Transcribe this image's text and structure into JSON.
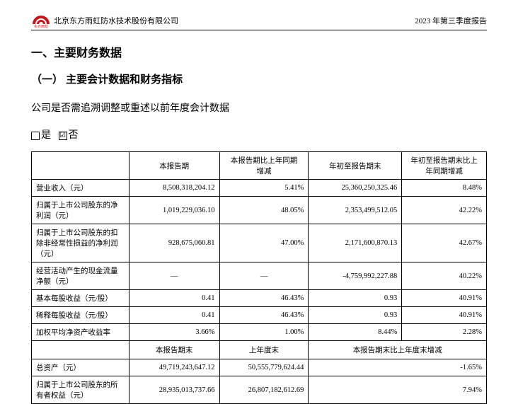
{
  "header": {
    "company_name": "北京东方雨虹防水技术股份有限公司",
    "report_label": "2023 年第三季度报告",
    "logo_color": "#c4161c",
    "logo_sub": "东方雨虹"
  },
  "headings": {
    "h1": "一、主要财务数据",
    "h2": "（一） 主要会计数据和财务指标",
    "para": "公司是否需追溯调整或重述以前年度会计数据",
    "opt_yes": "是",
    "opt_no": "否",
    "opt_symbol": ""
  },
  "table1": {
    "headers": {
      "blank": "",
      "c1": "本报告期",
      "c2": "本报告期比上年同期\n增减",
      "c3": "年初至报告期末",
      "c4": "年初至报告期末比上\n年同期增减"
    },
    "rows": [
      {
        "label": "营业收入（元）",
        "c1": "8,508,318,204.12",
        "c2": "5.41%",
        "c3": "25,360,250,325.46",
        "c4": "8.48%"
      },
      {
        "label": "归属于上市公司股东的净\n利润（元）",
        "c1": "1,019,229,036.10",
        "c2": "48.05%",
        "c3": "2,353,499,512.05",
        "c4": "42.22%"
      },
      {
        "label": "归属于上市公司股东的扣\n除非经常性损益的净利润\n（元）",
        "c1": "928,675,060.81",
        "c2": "47.00%",
        "c3": "2,171,600,870.13",
        "c4": "42.67%"
      },
      {
        "label": "经营活动产生的现金流量\n净额（元）",
        "c1": "—",
        "c2": "—",
        "c3": "-4,759,992,227.88",
        "c4": "40.22%"
      },
      {
        "label": "基本每股收益（元/股）",
        "c1": "0.41",
        "c2": "46.43%",
        "c3": "0.93",
        "c4": "40.91%"
      },
      {
        "label": "稀释每股收益（元/股）",
        "c1": "0.41",
        "c2": "46.43%",
        "c3": "0.93",
        "c4": "40.91%"
      },
      {
        "label": "加权平均净资产收益率",
        "c1": "3.66%",
        "c2": "1.00%",
        "c3": "8.44%",
        "c4": "2.28%"
      }
    ]
  },
  "table2": {
    "headers": {
      "blank": "",
      "c1": "本报告期末",
      "c2": "上年度末",
      "c34": "本报告期末比上年度末增减"
    },
    "rows": [
      {
        "label": "总资产（元）",
        "c1": "49,719,243,647.12",
        "c2": "50,555,779,624.44",
        "c34": "-1.65%"
      },
      {
        "label": "归属于上市公司股东的所\n有者权益（元）",
        "c1": "28,935,013,737.66",
        "c2": "26,807,182,612.69",
        "c34": "7.94%"
      }
    ]
  },
  "col_widths": {
    "label": 138,
    "c1": 128,
    "c2": 126,
    "c3": 132,
    "c4": 120
  }
}
